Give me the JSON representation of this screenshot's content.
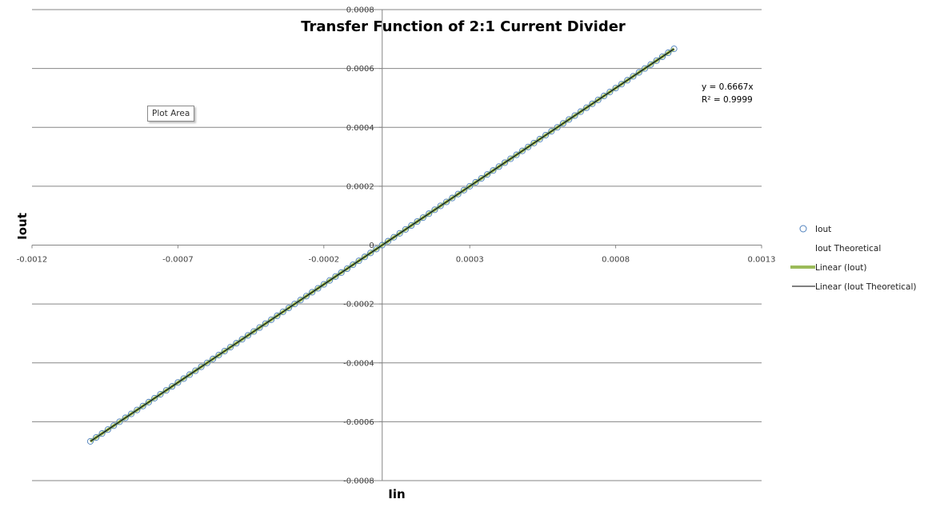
{
  "chart_data": {
    "type": "scatter",
    "title": "Transfer Function of 2:1 Current Divider",
    "xlabel": "Iin",
    "ylabel": "Iout",
    "xlim": [
      -0.0012,
      0.0013
    ],
    "ylim": [
      -0.0008,
      0.0008
    ],
    "x_ticks": [
      "-0.0012",
      "-0.0007",
      "-0.0002",
      "0.0003",
      "0.0008",
      "0.0013"
    ],
    "y_ticks": [
      "0.0008",
      "0.0006",
      "0.0004",
      "0.0002",
      "0",
      "-0.0002",
      "-0.0004",
      "-0.0006",
      "-0.0008"
    ],
    "grid": true,
    "legend_position": "right",
    "series": [
      {
        "name": "Iout",
        "kind": "markers",
        "color": "#4f81bd",
        "x_range": [
          -0.001,
          0.001
        ],
        "n_points": 101,
        "slope": 0.6667
      },
      {
        "name": "Iout Theoretical",
        "kind": "none",
        "color": "#ffffff"
      },
      {
        "name": "Linear (Iout)",
        "kind": "trendline",
        "color": "#9bbb59",
        "slope": 0.6667
      },
      {
        "name": "Linear (Iout Theoretical)",
        "kind": "trendline",
        "color": "#000000",
        "slope": 0.6667
      }
    ],
    "annotations": {
      "trendline_equation": "y = 0.6667x",
      "r_squared": "R² = 0.9999"
    }
  },
  "tooltip": {
    "text": "Plot Area"
  }
}
